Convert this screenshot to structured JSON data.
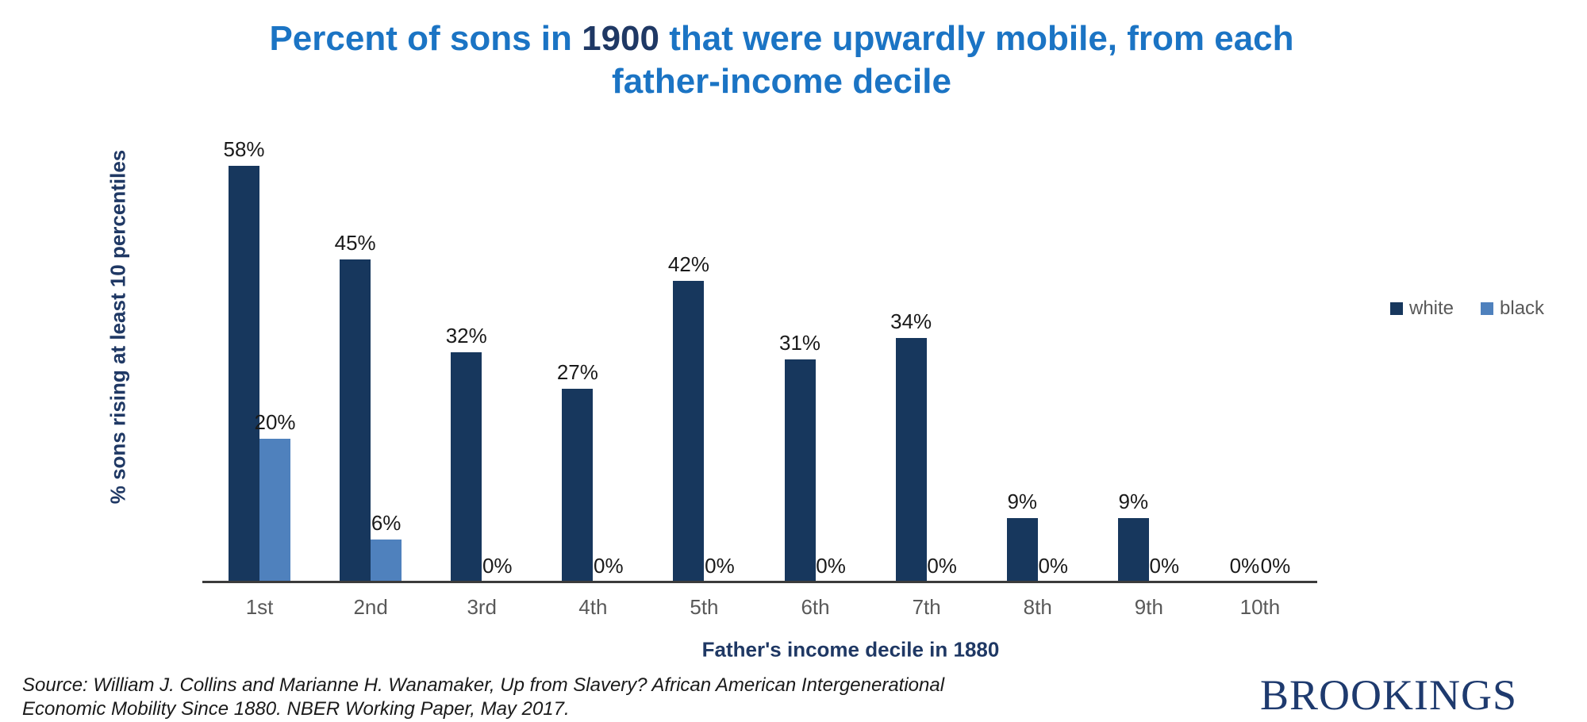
{
  "colors": {
    "title_blue": "#1B74C4",
    "navy": "#1F3864",
    "tick_gray": "#595959",
    "text_black": "#1a1a1a",
    "axis_line": "#3b3b3b",
    "logo_navy": "#1E3A6E",
    "bar_dark_blue": "#17375D",
    "bar_light_blue": "#4F81BD"
  },
  "title": {
    "prefix": "Percent of sons in",
    "year": "1900",
    "suffix_line1": "that were upwardly mobile, from each",
    "line2": "father-income decile"
  },
  "chart_data": {
    "type": "bar",
    "title": "Percent of sons in 1900 that were upwardly mobile, from each father-income decile",
    "categories": [
      "1st",
      "2nd",
      "3rd",
      "4th",
      "5th",
      "6th",
      "7th",
      "8th",
      "9th",
      "10th"
    ],
    "series": [
      {
        "name": "white",
        "color": "#17375D",
        "values": [
          58,
          45,
          32,
          27,
          42,
          31,
          34,
          9,
          9,
          0
        ]
      },
      {
        "name": "black",
        "color": "#4F81BD",
        "values": [
          20,
          6,
          0,
          0,
          0,
          0,
          0,
          0,
          0,
          0
        ]
      }
    ],
    "xlabel": "Father's income decile in 1880",
    "ylabel": "% sons rising at least 10 percentiles",
    "value_suffix": "%",
    "ylim": [
      0,
      60
    ],
    "grid": false,
    "y_axis_ticks_visible": false,
    "data_labels": true,
    "legend_position": "right"
  },
  "source": {
    "lines": [
      "Source: William J. Collins and Marianne H. Wanamaker, Up from Slavery? African American Intergenerational",
      "Economic Mobility Since 1880. NBER Working Paper, May 2017."
    ]
  },
  "branding": {
    "logo_text": "BROOKINGS"
  }
}
